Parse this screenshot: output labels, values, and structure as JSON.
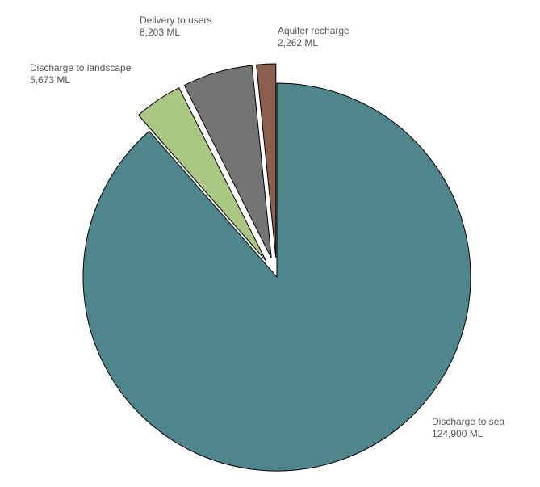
{
  "chart_data": {
    "type": "pie",
    "title": "",
    "unit": "ML",
    "start_angle_deg": 0,
    "direction": "clockwise",
    "slices": [
      {
        "name": "Discharge to sea",
        "value": 124900,
        "value_label": "124,900 ML",
        "color": "#4f868c",
        "exploded": false
      },
      {
        "name": "Discharge to landscape",
        "value": 5673,
        "value_label": "5,673 ML",
        "color": "#a9c683",
        "exploded": true
      },
      {
        "name": "Delivery to users",
        "value": 8203,
        "value_label": "8,203 ML",
        "color": "#747474",
        "exploded": true
      },
      {
        "name": "Aquifer recharge",
        "value": 2262,
        "value_label": "2,262 ML",
        "color": "#8b5e4d",
        "exploded": true
      }
    ]
  }
}
